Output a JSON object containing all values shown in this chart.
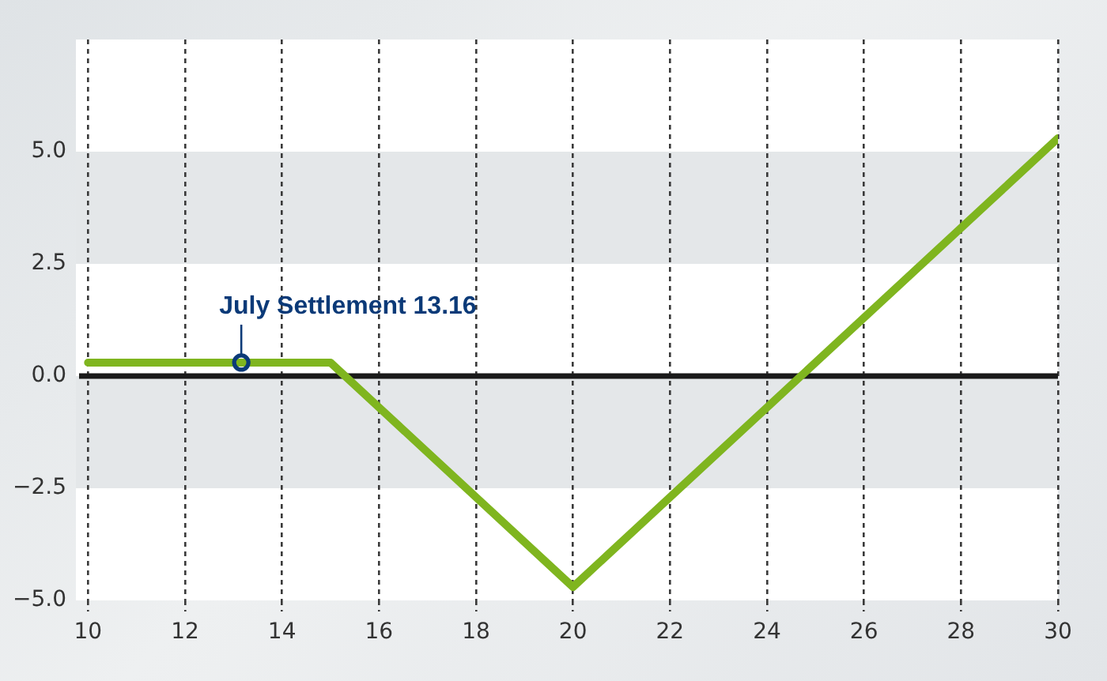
{
  "chart_data": {
    "type": "line",
    "x": [
      10,
      15,
      20,
      30
    ],
    "values": [
      0.3,
      0.3,
      -4.7,
      5.3
    ],
    "color": "#7fb51f",
    "xlim": [
      9.75,
      30
    ],
    "xticks": [
      10,
      12,
      14,
      16,
      18,
      20,
      22,
      24,
      26,
      28,
      30
    ],
    "ylim": [
      -5,
      7.5
    ],
    "yticks": [
      {
        "value": -5,
        "label": "−5.0"
      },
      {
        "value": -2.5,
        "label": "−2.5"
      },
      {
        "value": 0,
        "label": "0.0"
      },
      {
        "value": 2.5,
        "label": "2.5"
      },
      {
        "value": 5,
        "label": "5.0"
      }
    ],
    "grid": "x",
    "legend": false,
    "marker": "none",
    "line_style": "solid",
    "ref_lines": [
      {
        "axis": "y",
        "value": 0,
        "color": "#1a1a1a"
      }
    ],
    "bands": [
      {
        "axis": "y",
        "from": 2.5,
        "to": 5,
        "color": "#e4e7e9"
      },
      {
        "axis": "y",
        "from": -2.5,
        "to": 0,
        "color": "#e4e7e9"
      }
    ],
    "annotations": [
      {
        "text": "July Settlement 13.16",
        "x": 13.16,
        "y": 0.3
      }
    ]
  }
}
